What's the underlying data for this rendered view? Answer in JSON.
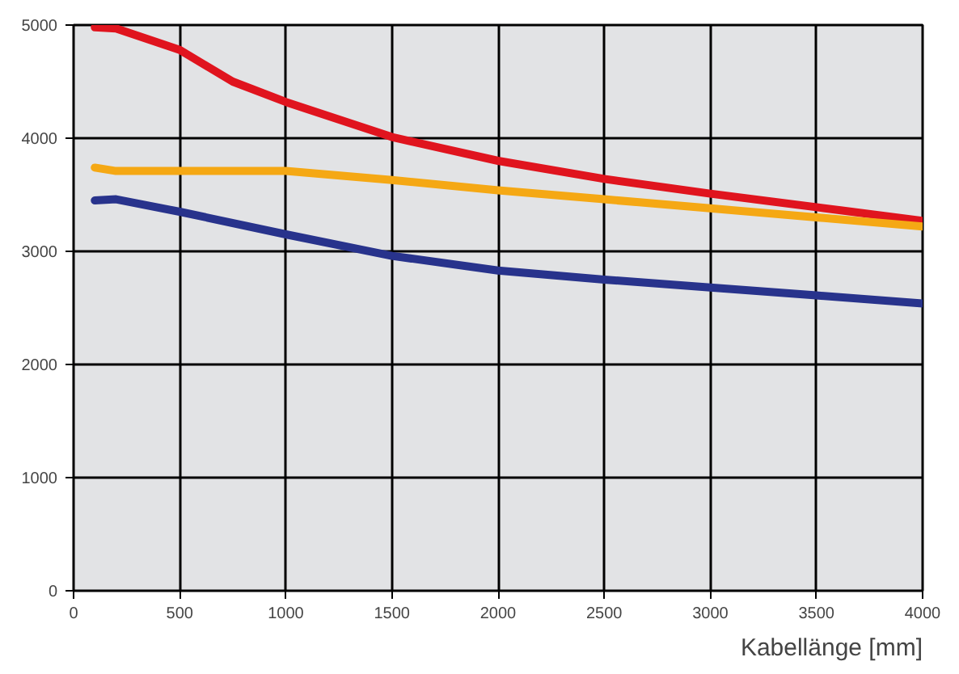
{
  "chart_data": {
    "type": "line",
    "xlabel": "Kabellänge [mm]",
    "xlim": [
      0,
      4000
    ],
    "xticks": [
      0,
      500,
      1000,
      1500,
      2000,
      2500,
      3000,
      3500,
      4000
    ],
    "ylim": [
      0,
      5000
    ],
    "yticks": [
      0,
      1000,
      2000,
      3000,
      4000,
      5000
    ],
    "grid": true,
    "marker": "none",
    "line_style": "solid",
    "series": [
      {
        "color": "#e0141e",
        "x": [
          100,
          200,
          500,
          750,
          1000,
          1500,
          2000,
          2500,
          3000,
          3500,
          4000
        ],
        "values": [
          4980,
          4970,
          4780,
          4500,
          4320,
          4010,
          3800,
          3640,
          3510,
          3390,
          3270
        ]
      },
      {
        "color": "#f5a814",
        "x": [
          100,
          200,
          1000,
          1500,
          2000,
          2500,
          3000,
          3500,
          4000
        ],
        "values": [
          3740,
          3710,
          3710,
          3630,
          3540,
          3460,
          3380,
          3300,
          3220
        ]
      },
      {
        "color": "#28338c",
        "x": [
          100,
          200,
          500,
          1000,
          1500,
          2000,
          2500,
          3000,
          3500,
          4000
        ],
        "values": [
          3450,
          3460,
          3350,
          3150,
          2960,
          2830,
          2750,
          2680,
          2610,
          2540
        ]
      }
    ]
  }
}
